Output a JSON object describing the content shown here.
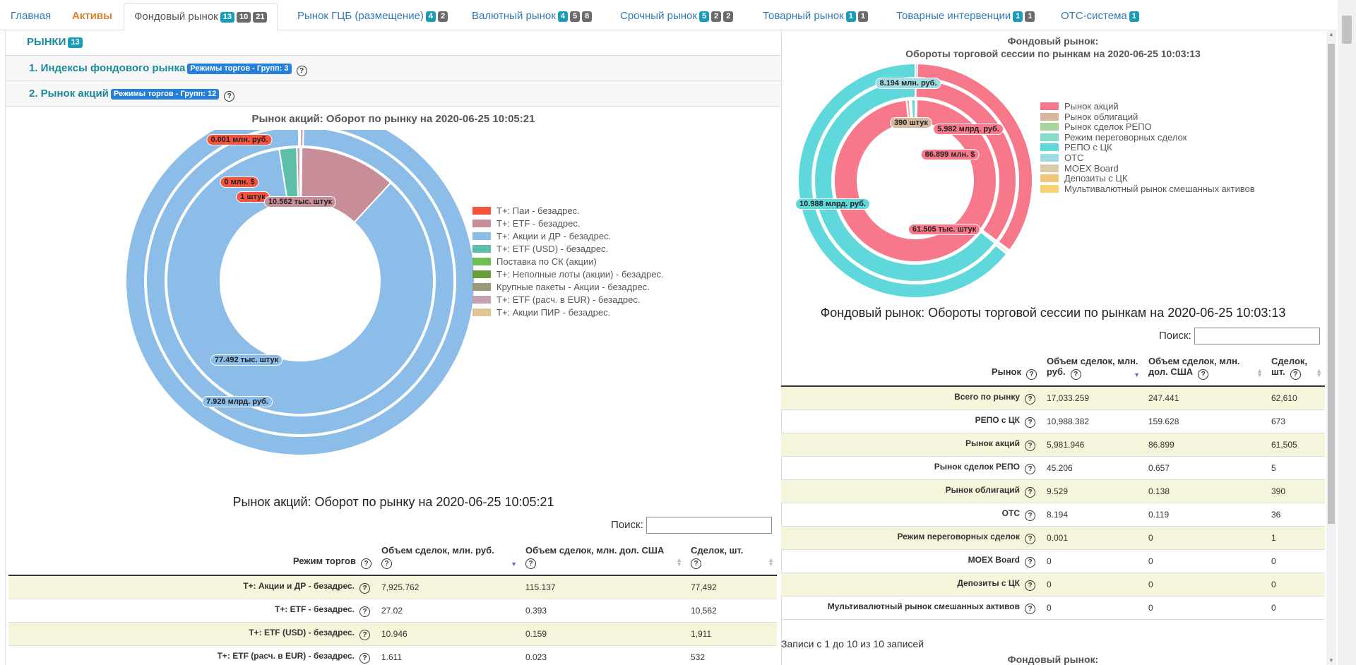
{
  "tabs": [
    {
      "label": "Главная",
      "badges": []
    },
    {
      "label": "Активы",
      "badges": []
    },
    {
      "label": "Фондовый рынок",
      "badges": [
        {
          "t": "13",
          "c": "teal"
        },
        {
          "t": "10",
          "c": "gray"
        },
        {
          "t": "21",
          "c": "gray"
        }
      ]
    },
    {
      "label": "Рынок ГЦБ (размещение)",
      "badges": [
        {
          "t": "4",
          "c": "teal"
        },
        {
          "t": "2",
          "c": "gray"
        }
      ]
    },
    {
      "label": "Валютный рынок",
      "badges": [
        {
          "t": "4",
          "c": "teal"
        },
        {
          "t": "5",
          "c": "gray"
        },
        {
          "t": "8",
          "c": "gray"
        }
      ]
    },
    {
      "label": "Срочный рынок",
      "badges": [
        {
          "t": "5",
          "c": "teal"
        },
        {
          "t": "2",
          "c": "gray"
        },
        {
          "t": "2",
          "c": "gray"
        }
      ]
    },
    {
      "label": "Товарный рынок",
      "badges": [
        {
          "t": "1",
          "c": "teal"
        },
        {
          "t": "1",
          "c": "gray"
        }
      ]
    },
    {
      "label": "Товарные интервенции",
      "badges": [
        {
          "t": "1",
          "c": "teal"
        },
        {
          "t": "1",
          "c": "gray"
        }
      ]
    },
    {
      "label": "ОТС-система",
      "badges": [
        {
          "t": "1",
          "c": "teal"
        }
      ]
    }
  ],
  "left": {
    "markets_title": "РЫНКИ",
    "markets_badge": "13",
    "section1": {
      "label": "1. Индексы фондового рынка",
      "badge": "Режимы торгов - Групп: 3"
    },
    "section2": {
      "label": "2. Рынок акций",
      "badge": "Режимы торгов - Групп: 12"
    },
    "chart_title": "Рынок акций: Оборот по рынку на 2020-06-25 10:05:21",
    "table_title": "Рынок акций: Оборот по рынку на 2020-06-25 10:05:21",
    "search_label": "Поиск:",
    "columns": [
      "Режим торгов",
      "Объем сделок, млн. руб.",
      "Объем сделок, млн. дол. США",
      "Сделок, шт."
    ],
    "rows": [
      [
        "T+: Акции и ДР - безадрес.",
        "7,925.762",
        "115.137",
        "77,492"
      ],
      [
        "T+: ETF - безадрес.",
        "27.02",
        "0.393",
        "10,562"
      ],
      [
        "T+: ETF (USD) - безадрес.",
        "10.946",
        "0.159",
        "1,911"
      ],
      [
        "T+: ETF (расч. в EUR) - безадрес.",
        "1.611",
        "0.023",
        "532"
      ]
    ]
  },
  "right": {
    "chart_title_1": "Фондовый рынок:",
    "chart_title_2": "Обороты торговой сессии по рынкам на 2020-06-25 10:03:13",
    "table_title": "Фондовый рынок: Обороты торговой сессии по рынкам на 2020-06-25 10:03:13",
    "search_label": "Поиск:",
    "columns": [
      "Рынок",
      "Объем сделок, млн. руб.",
      "Объем сделок, млн. дол. США",
      "Сделок, шт."
    ],
    "rows": [
      [
        "Всего по рынку",
        "17,033.259",
        "247.441",
        "62,610"
      ],
      [
        "РЕПО с ЦК",
        "10,988.382",
        "159.628",
        "673"
      ],
      [
        "Рынок акций",
        "5,981.946",
        "86.899",
        "61,505"
      ],
      [
        "Рынок сделок РЕПО",
        "45.206",
        "0.657",
        "5"
      ],
      [
        "Рынок облигаций",
        "9.529",
        "0.138",
        "390"
      ],
      [
        "ОТС",
        "8.194",
        "0.119",
        "36"
      ],
      [
        "Режим переговорных сделок",
        "0.001",
        "0",
        "1"
      ],
      [
        "MOEX Board",
        "0",
        "0",
        "0"
      ],
      [
        "Депозиты с ЦК",
        "0",
        "0",
        "0"
      ],
      [
        "Мультивалютный рынок смешанных активов",
        "0",
        "0",
        "0"
      ]
    ],
    "info": "Записи с 1 до 10 из 10 записей",
    "bottom_title": "Фондовый рынок:"
  },
  "chart_data": [
    {
      "type": "pie",
      "title": "Рынок акций: Оборот по рынку на 2020-06-25 10:05:21",
      "legend": [
        "T+: Паи - безадрес.",
        "T+: ETF - безадрес.",
        "T+: Акции и ДР - безадрес.",
        "T+: ETF (USD) - безадрес.",
        "Поставка по СК (акции)",
        "T+: Неполные лоты (акции) - безадрес.",
        "Крупные пакеты - Акции - безадрес.",
        "T+: ETF (расч. в EUR) - безадрес.",
        "T+: Акции ПИР - безадрес."
      ],
      "colors": [
        "#f5533d",
        "#c78e99",
        "#8cbde9",
        "#5dbfa7",
        "#6cbf52",
        "#6a9e3a",
        "#9c9a7b",
        "#c4a0b0",
        "#e0c494"
      ],
      "rings": {
        "outer": [
          0.001,
          27.02,
          7925.762,
          10.946,
          0,
          0,
          0,
          1.611,
          0
        ],
        "middle": [
          0,
          0.393,
          115.137,
          0.159,
          0,
          0,
          0,
          0.023,
          0
        ],
        "inner": [
          1,
          10562,
          77492,
          1911,
          0,
          0,
          0,
          532,
          0
        ]
      },
      "labels": [
        "0.001 млн. руб.",
        "0 млн. $",
        "1 штук",
        "10.562 тыс. штук",
        "77.492 тыс. штук",
        "7.926 млрд. руб."
      ],
      "legend_position": "right"
    },
    {
      "type": "pie",
      "title": "Фондовый рынок: Обороты торговой сессии по рынкам на 2020-06-25 10:03:13",
      "legend": [
        "Рынок акций",
        "Рынок облигаций",
        "Рынок сделок РЕПО",
        "Режим переговорных сделок",
        "РЕПО с ЦК",
        "ОТС",
        "MOEX Board",
        "Депозиты с ЦК",
        "Мультивалютный рынок смешанных активов"
      ],
      "colors": [
        "#f7788a",
        "#d7b79c",
        "#a7d39c",
        "#86dcc6",
        "#5fd8dc",
        "#9fdbe3",
        "#d8cda8",
        "#f1c87a",
        "#f9d36d"
      ],
      "rings": {
        "outer": [
          5981.946,
          9.529,
          45.206,
          0.001,
          10988.382,
          8.194,
          0,
          0,
          0
        ],
        "middle": [
          86.899,
          0.138,
          0.657,
          0,
          159.628,
          0.119,
          0,
          0,
          0
        ],
        "inner": [
          61505,
          390,
          5,
          1,
          673,
          36,
          0,
          0,
          0
        ]
      },
      "labels": [
        "8.194 млн. руб.",
        "5.982 млрд. руб.",
        "390 штук",
        "86.899 млн. $",
        "10.988 млрд. руб.",
        "61.505 тыс. штук"
      ],
      "legend_position": "right"
    }
  ]
}
